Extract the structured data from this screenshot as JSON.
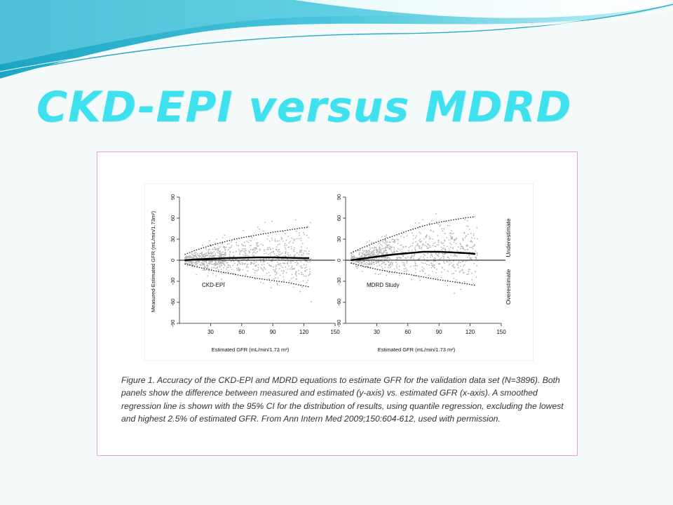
{
  "slide": {
    "title": "CKD-EPI versus MDRD"
  },
  "caption": "Figure 1. Accuracy of the CKD-EPI and MDRD equations to estimate GFR for the validation data set (N=3896). Both panels show the difference between measured and estimated (y-axis) vs. estimated GFR (x-axis). A smoothed regression line is shown with the 95% CI for the distribution of results, using quantile regression, excluding the lowest and highest 2.5% of estimated GFR. From Ann Intern Med 2009;150:604-612, used with permission.",
  "colors": {
    "title": "#3fe1ee",
    "points": "#b4b4b4",
    "line": "#000000",
    "frame": "#e8a0dc"
  },
  "chart_data": {
    "type": "scatter",
    "ylabel": "Measured-Estimated GFR (mL/min/1.73m²)",
    "right_labels": {
      "upper": "Underestimate",
      "lower": "Overestimate"
    },
    "panels": [
      {
        "label": "CKD-EPI",
        "xlabel": "Estimated GFR (mL/min/1.73 m²)",
        "xlim": [
          0,
          150
        ],
        "xticks": [
          30,
          60,
          90,
          120,
          150
        ],
        "ylim": [
          -90,
          90
        ],
        "yticks": [
          -90,
          -60,
          -30,
          0,
          30,
          60,
          90
        ],
        "regression": [
          [
            5,
            0
          ],
          [
            15,
            1
          ],
          [
            30,
            2
          ],
          [
            45,
            3
          ],
          [
            60,
            3.5
          ],
          [
            75,
            4
          ],
          [
            90,
            4
          ],
          [
            105,
            3.5
          ],
          [
            118,
            3
          ],
          [
            125,
            3
          ]
        ],
        "ci_upper": [
          [
            5,
            8
          ],
          [
            15,
            14
          ],
          [
            30,
            21
          ],
          [
            45,
            27
          ],
          [
            60,
            32
          ],
          [
            75,
            36
          ],
          [
            90,
            40
          ],
          [
            105,
            43
          ],
          [
            118,
            46
          ],
          [
            125,
            47
          ]
        ],
        "ci_lower": [
          [
            5,
            -5
          ],
          [
            15,
            -9
          ],
          [
            30,
            -14
          ],
          [
            45,
            -18
          ],
          [
            60,
            -22
          ],
          [
            75,
            -26
          ],
          [
            90,
            -29
          ],
          [
            105,
            -32
          ],
          [
            118,
            -36
          ],
          [
            125,
            -38
          ]
        ],
        "scatter_n": 3896
      },
      {
        "label": "MDRD Study",
        "xlabel": "Estimated GFR (mL/min/1.73 m²)",
        "xlim": [
          0,
          150
        ],
        "xticks": [
          30,
          60,
          90,
          120,
          150
        ],
        "ylim": [
          -90,
          90
        ],
        "yticks": [
          -90,
          -60,
          -30,
          0,
          30,
          60,
          90
        ],
        "regression": [
          [
            5,
            0
          ],
          [
            15,
            2
          ],
          [
            30,
            5
          ],
          [
            45,
            8
          ],
          [
            60,
            10
          ],
          [
            75,
            12
          ],
          [
            90,
            12
          ],
          [
            105,
            11
          ],
          [
            118,
            10
          ],
          [
            125,
            9
          ]
        ],
        "ci_upper": [
          [
            5,
            10
          ],
          [
            15,
            17
          ],
          [
            30,
            26
          ],
          [
            45,
            34
          ],
          [
            60,
            42
          ],
          [
            75,
            49
          ],
          [
            90,
            54
          ],
          [
            105,
            58
          ],
          [
            118,
            61
          ],
          [
            125,
            62
          ]
        ],
        "ci_lower": [
          [
            5,
            -4
          ],
          [
            15,
            -8
          ],
          [
            30,
            -13
          ],
          [
            45,
            -17
          ],
          [
            60,
            -20
          ],
          [
            75,
            -24
          ],
          [
            90,
            -28
          ],
          [
            105,
            -31
          ],
          [
            118,
            -34
          ],
          [
            125,
            -36
          ]
        ],
        "scatter_n": 3896
      }
    ]
  }
}
